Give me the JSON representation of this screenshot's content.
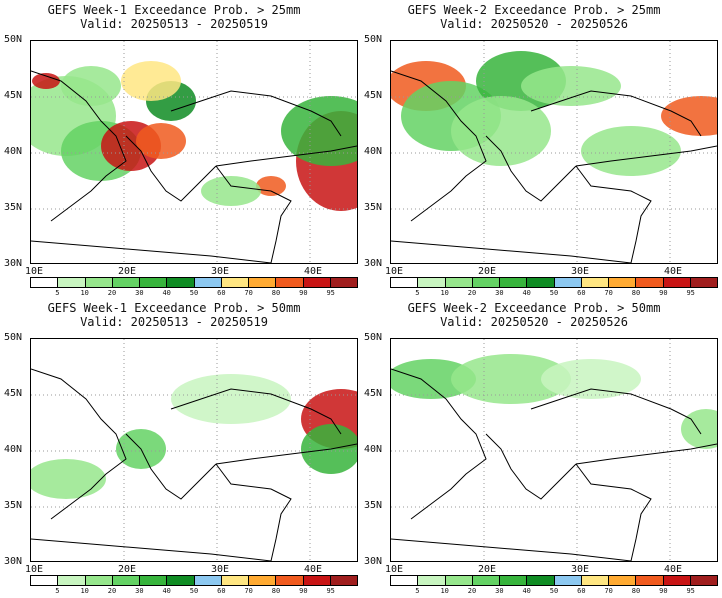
{
  "panels": [
    {
      "title": "GEFS Week-1 Exceedance Prob. > 25mm",
      "valid": "Valid: 20250513 - 20250519"
    },
    {
      "title": "GEFS Week-2 Exceedance Prob. > 25mm",
      "valid": "Valid: 20250520 - 20250526"
    },
    {
      "title": "GEFS Week-1 Exceedance Prob. > 50mm",
      "valid": "Valid: 20250513 - 20250519"
    },
    {
      "title": "GEFS Week-2 Exceedance Prob. > 50mm",
      "valid": "Valid: 20250520 - 20250526"
    }
  ],
  "lat_labels": [
    "50N",
    "45N",
    "40N",
    "35N",
    "30N"
  ],
  "lon_labels": [
    "10E",
    "20E",
    "30E",
    "40E"
  ],
  "colorbar": {
    "ticks": [
      "5",
      "10",
      "20",
      "30",
      "40",
      "50",
      "60",
      "70",
      "80",
      "90",
      "95"
    ],
    "colors": [
      "#ffffff",
      "#c8f5c0",
      "#96e68c",
      "#64d264",
      "#37b43c",
      "#0f8c23",
      "#8cc8f0",
      "#ffe682",
      "#ffaa32",
      "#f05a1e",
      "#c81414",
      "#a01e1e"
    ]
  }
}
